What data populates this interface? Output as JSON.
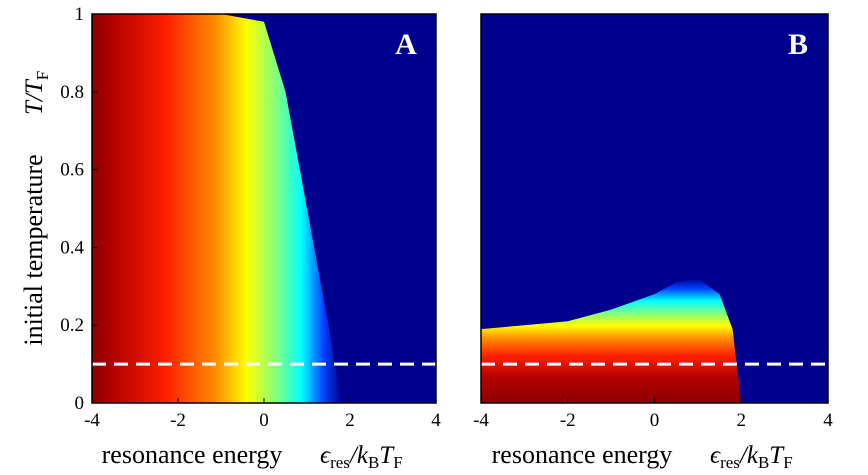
{
  "chart_data": [
    {
      "type": "heatmap",
      "panel_label": "A",
      "xlabel": "resonance energy",
      "xlabel_symbol": {
        "main": "ϵ",
        "sub1": "res",
        "mid": "/k",
        "sub2": "B",
        "end": "T",
        "sub3": "F"
      },
      "ylabel": "initial temperature",
      "ylabel_symbol": {
        "main": "T/T",
        "sub": "F"
      },
      "xlim": [
        -4,
        4
      ],
      "ylim": [
        0,
        1
      ],
      "xticks": [
        -4,
        -2,
        0,
        2,
        4
      ],
      "yticks": [
        0,
        0.2,
        0.4,
        0.6,
        0.8,
        1
      ],
      "colormap": "jet",
      "reference_line_y": 0.1,
      "reference_line_style": "dashed-white",
      "boundary": {
        "x": [
          -4,
          -3,
          -2,
          -1,
          0,
          0.5,
          1,
          1.5,
          1.8
        ],
        "y": [
          1,
          1,
          1,
          1,
          0.98,
          0.8,
          0.5,
          0.2,
          0.0
        ]
      }
    },
    {
      "type": "heatmap",
      "panel_label": "B",
      "xlabel": "resonance energy",
      "xlabel_symbol": {
        "main": "ϵ",
        "sub1": "res",
        "mid": "/k",
        "sub2": "B",
        "end": "T",
        "sub3": "F"
      },
      "xlim": [
        -4,
        4
      ],
      "ylim": [
        0,
        1
      ],
      "xticks": [
        -4,
        -2,
        0,
        2,
        4
      ],
      "colormap": "jet",
      "reference_line_y": 0.1,
      "reference_line_style": "dashed-white",
      "boundary": {
        "x": [
          -4,
          -3,
          -2,
          -1,
          0,
          0.5,
          1,
          1.5,
          1.8,
          2.0
        ],
        "y": [
          0.19,
          0.2,
          0.21,
          0.24,
          0.28,
          0.31,
          0.32,
          0.28,
          0.19,
          0.0
        ]
      }
    }
  ]
}
